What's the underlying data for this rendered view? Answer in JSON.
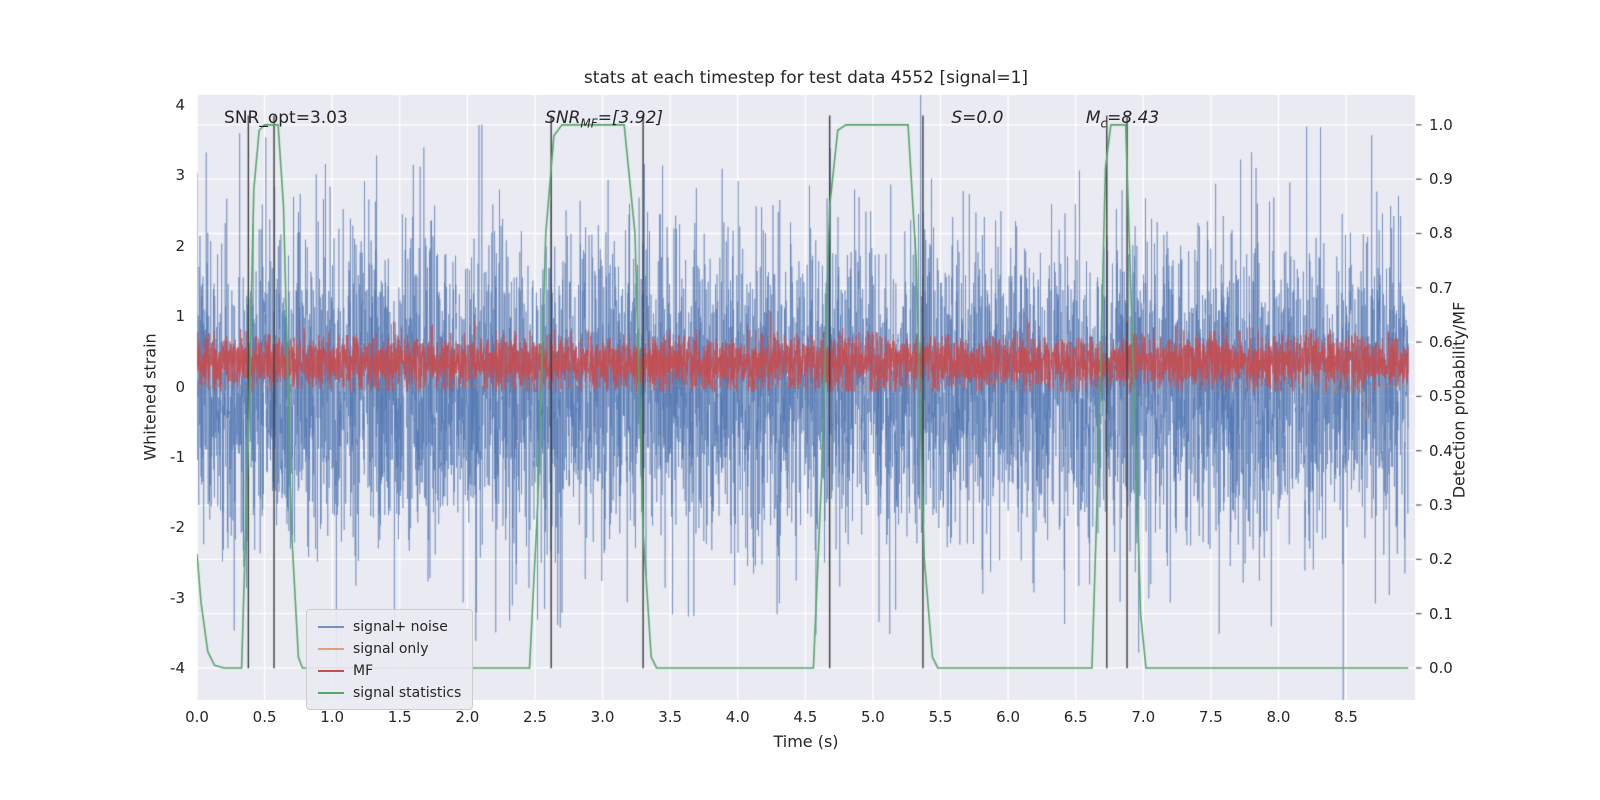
{
  "chart_data": {
    "type": "line",
    "title": "stats at each timestep for test data 4552 [signal=1]",
    "xlabel": "Time (s)",
    "ylabel_left": "Whitened strain",
    "ylabel_right": "Detection probability/MF",
    "xlim": [
      0,
      9.01
    ],
    "ylim_left": [
      -4.45,
      4.141
    ],
    "ylim_right": [
      -0.059,
      1.055
    ],
    "grid": true,
    "plot_bg": "#eaeaf2",
    "grid_color": "#ffffff",
    "x_ticks": {
      "labels": [
        "0.0",
        "0.5",
        "1.0",
        "1.5",
        "2.0",
        "2.5",
        "3.0",
        "3.5",
        "4.0",
        "4.5",
        "5.0",
        "5.5",
        "6.0",
        "6.5",
        "7.0",
        "7.5",
        "8.0",
        "8.5"
      ],
      "values": [
        0,
        0.5,
        1,
        1.5,
        2,
        2.5,
        3,
        3.5,
        4,
        4.5,
        5,
        5.5,
        6,
        6.5,
        7,
        7.5,
        8,
        8.5
      ]
    },
    "y_ticks_left": {
      "labels": [
        "-4",
        "-3",
        "-2",
        "-1",
        "0",
        "1",
        "2",
        "3",
        "4"
      ],
      "values": [
        -4,
        -3,
        -2,
        -1,
        0,
        1,
        2,
        3,
        4
      ]
    },
    "y_ticks_right": {
      "labels": [
        "0.0",
        "0.1",
        "0.2",
        "0.3",
        "0.4",
        "0.5",
        "0.6",
        "0.7",
        "0.8",
        "0.9",
        "1.0"
      ],
      "values": [
        0,
        0.1,
        0.2,
        0.3,
        0.4,
        0.5,
        0.6,
        0.7,
        0.8,
        0.9,
        1.0
      ]
    },
    "annotations": [
      {
        "pre": "SNR_opt=3.03",
        "sub": "",
        "post": "",
        "x": 0.2,
        "y": 3.8,
        "italic": false
      },
      {
        "pre": "SNR",
        "sub": "MF",
        "post": "=[3.92]",
        "x": 2.575,
        "y": 3.8,
        "italic": true
      },
      {
        "pre": "S=0.0",
        "sub": "",
        "post": "",
        "x": 5.58,
        "y": 3.8,
        "italic": true
      },
      {
        "pre": "M",
        "sub": "c",
        "post": "=8.43",
        "x": 6.575,
        "y": 3.8,
        "italic": true
      }
    ],
    "vlines": {
      "x": [
        0.38,
        0.57,
        2.62,
        3.3,
        4.68,
        5.37,
        6.73,
        6.88
      ],
      "color": "#3d3d3d",
      "ymin": -4.0,
      "ymax": 3.85
    },
    "legend": {
      "position": "lower left",
      "items": [
        {
          "label": "signal+ noise",
          "color": "rgba(76,114,176,0.75)"
        },
        {
          "label": "signal only",
          "color": "rgba(221,132,82,0.75)"
        },
        {
          "label": "MF",
          "color": "#C44E52"
        },
        {
          "label": "signal statistics",
          "color": "#55A868"
        }
      ]
    },
    "series": [
      {
        "name": "signal+ noise",
        "kind": "gaussian_noise",
        "axis": "left",
        "color": "rgba(76,114,176,0.62)",
        "mean": 0,
        "std": 1.1,
        "n": 6200,
        "seed": 7,
        "t_range": [
          0.002,
          8.96
        ]
      },
      {
        "name": "signal only",
        "kind": "chirp",
        "axis": "left",
        "color": "rgba(221,132,82,0.55)",
        "offset": 0.35,
        "t_break": 8.61,
        "envelope": [
          [
            0,
            0.012
          ],
          [
            4.3,
            0.012
          ],
          [
            5.5,
            0.04
          ],
          [
            6.5,
            0.1
          ],
          [
            7.3,
            0.17
          ],
          [
            8.0,
            0.26
          ],
          [
            8.45,
            0.34
          ],
          [
            8.6,
            0.36
          ]
        ],
        "freq": [
          [
            0,
            1.2
          ],
          [
            5,
            2
          ],
          [
            7,
            4
          ],
          [
            8,
            8
          ],
          [
            8.4,
            14
          ],
          [
            8.6,
            22
          ]
        ],
        "merger_points": [
          [
            8.615,
            0.12
          ],
          [
            8.63,
            -0.2
          ],
          [
            8.648,
            -0.46
          ],
          [
            8.66,
            -0.28
          ],
          [
            8.672,
            -0.08
          ],
          [
            8.685,
            0
          ],
          [
            8.96,
            0
          ]
        ]
      },
      {
        "name": "MF",
        "kind": "gaussian_noise",
        "axis": "left",
        "color": "rgba(196,78,82,0.95)",
        "mean": 0.34,
        "std": 0.185,
        "clip_min": -0.07,
        "n": 6200,
        "seed": 99,
        "t_range": [
          0.002,
          8.96
        ]
      },
      {
        "name": "signal statistics",
        "kind": "line",
        "axis": "right",
        "color": "#55A868",
        "line_width": 1.6,
        "points": [
          [
            0.0,
            0.21
          ],
          [
            0.03,
            0.12
          ],
          [
            0.08,
            0.03
          ],
          [
            0.13,
            0.005
          ],
          [
            0.2,
            0.0
          ],
          [
            0.33,
            0.0
          ],
          [
            0.38,
            0.42
          ],
          [
            0.42,
            0.88
          ],
          [
            0.46,
            0.99
          ],
          [
            0.5,
            1.0
          ],
          [
            0.6,
            1.0
          ],
          [
            0.64,
            0.85
          ],
          [
            0.7,
            0.25
          ],
          [
            0.75,
            0.02
          ],
          [
            0.78,
            0.0
          ],
          [
            2.46,
            0.0
          ],
          [
            2.52,
            0.3
          ],
          [
            2.58,
            0.8
          ],
          [
            2.64,
            0.98
          ],
          [
            2.7,
            1.0
          ],
          [
            3.16,
            1.0
          ],
          [
            3.24,
            0.8
          ],
          [
            3.3,
            0.25
          ],
          [
            3.36,
            0.02
          ],
          [
            3.4,
            0.0
          ],
          [
            4.56,
            0.0
          ],
          [
            4.62,
            0.35
          ],
          [
            4.68,
            0.85
          ],
          [
            4.74,
            0.99
          ],
          [
            4.8,
            1.0
          ],
          [
            5.26,
            1.0
          ],
          [
            5.32,
            0.75
          ],
          [
            5.38,
            0.2
          ],
          [
            5.44,
            0.02
          ],
          [
            5.48,
            0.0
          ],
          [
            6.62,
            0.0
          ],
          [
            6.67,
            0.4
          ],
          [
            6.72,
            0.92
          ],
          [
            6.76,
            1.0
          ],
          [
            6.87,
            1.0
          ],
          [
            6.92,
            0.6
          ],
          [
            6.98,
            0.1
          ],
          [
            7.02,
            0.0
          ],
          [
            8.96,
            0.0
          ]
        ]
      }
    ]
  }
}
